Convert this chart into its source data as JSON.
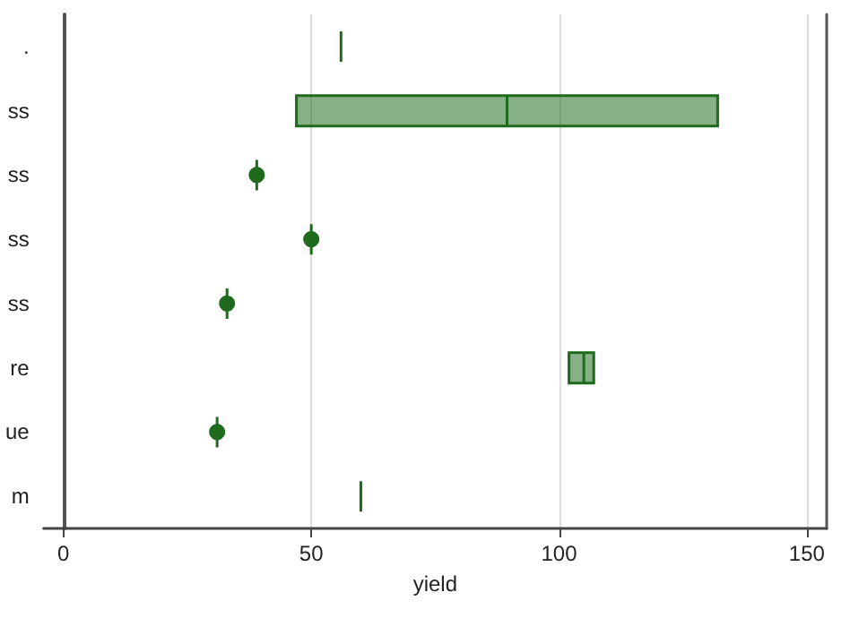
{
  "chart_data": {
    "type": "box",
    "orientation": "horizontal",
    "xlabel": "yield",
    "categories": [
      ".",
      "ss",
      "ss",
      "ss",
      "ss",
      "re",
      "ue",
      "m"
    ],
    "color": "#1e6b1e",
    "boxes": [
      {
        "low": 56,
        "q1": 56,
        "median": 56,
        "q3": 56,
        "high": 56
      },
      {
        "low": 47,
        "q1": 47,
        "median": 89.5,
        "q3": 132,
        "high": 132
      },
      {
        "low": 39,
        "q1": 39,
        "median": 39,
        "q3": 39,
        "high": 39,
        "mean": 39
      },
      {
        "low": 50,
        "q1": 50,
        "median": 50,
        "q3": 50,
        "high": 50,
        "mean": 50
      },
      {
        "low": 33,
        "q1": 33,
        "median": 33,
        "q3": 33,
        "high": 33,
        "mean": 33
      },
      {
        "low": 102,
        "q1": 102,
        "median": 105,
        "q3": 107,
        "high": 107
      },
      {
        "low": 31,
        "q1": 31,
        "median": 31,
        "q3": 31,
        "high": 31,
        "mean": 31
      },
      {
        "low": 60,
        "q1": 60,
        "median": 60,
        "q3": 60,
        "high": 60
      }
    ],
    "xlim": [
      -4,
      154
    ],
    "xticks": [
      0,
      50,
      100,
      150
    ],
    "grid": "x"
  }
}
